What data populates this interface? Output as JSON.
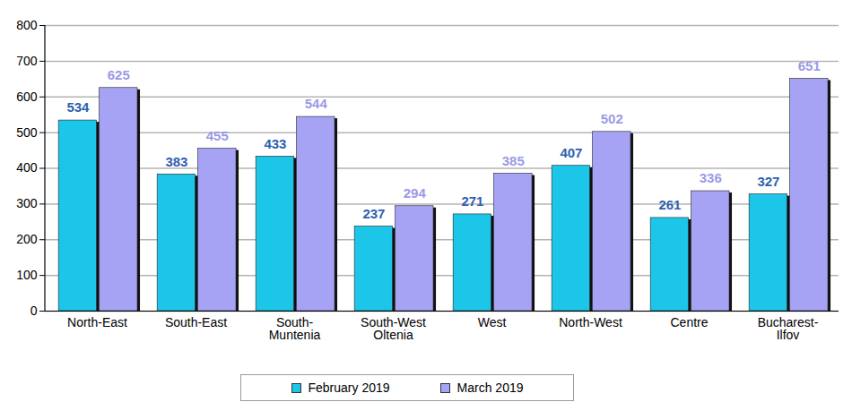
{
  "chart_data": {
    "type": "bar",
    "categories": [
      "North-East",
      "South-East",
      "South-Muntenia",
      "South-West Oltenia",
      "West",
      "North-West",
      "Centre",
      "Bucharest-Ilfov"
    ],
    "series": [
      {
        "name": "February 2019",
        "color": "#1cc6e8",
        "values": [
          534,
          383,
          433,
          237,
          271,
          407,
          261,
          327
        ]
      },
      {
        "name": "March 2019",
        "color": "#a6a3f5",
        "values": [
          625,
          455,
          544,
          294,
          385,
          502,
          336,
          651
        ]
      }
    ],
    "ylim": [
      0,
      800
    ],
    "yticks": [
      0,
      100,
      200,
      300,
      400,
      500,
      600,
      700,
      800
    ],
    "grid": true,
    "data_labels": true,
    "legend": "bottom"
  }
}
